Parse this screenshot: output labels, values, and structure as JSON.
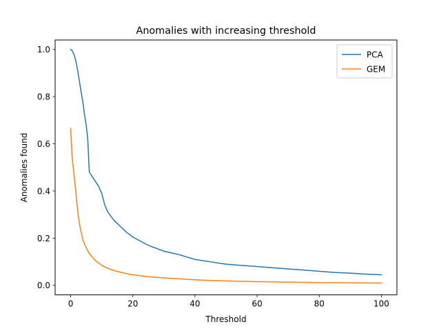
{
  "chart_data": {
    "type": "line",
    "title": "Anomalies with increasing threshold",
    "xlabel": "Threshold",
    "ylabel": "Anomalies found",
    "xlim": [
      -5,
      105
    ],
    "ylim": [
      -0.04,
      1.04
    ],
    "xticks": [
      0,
      20,
      40,
      60,
      80,
      100
    ],
    "xtick_labels": [
      "0",
      "20",
      "40",
      "60",
      "80",
      "100"
    ],
    "yticks": [
      0.0,
      0.2,
      0.4,
      0.6,
      0.8,
      1.0
    ],
    "ytick_labels": [
      "0.0",
      "0.2",
      "0.4",
      "0.6",
      "0.8",
      "1.0"
    ],
    "grid": false,
    "legend_position": "top-right",
    "series": [
      {
        "name": "PCA",
        "color": "#1f77b4",
        "x": [
          0,
          0.5,
          1,
          1.5,
          2,
          2.5,
          3,
          3.5,
          4,
          4.5,
          5,
          5.5,
          6,
          7,
          8,
          9,
          10,
          11,
          12,
          14,
          16,
          18,
          20,
          25,
          30,
          35,
          40,
          45,
          50,
          55,
          60,
          65,
          70,
          75,
          80,
          85,
          90,
          95,
          100
        ],
        "y": [
          1.0,
          0.995,
          0.98,
          0.96,
          0.93,
          0.89,
          0.85,
          0.81,
          0.77,
          0.72,
          0.68,
          0.62,
          0.48,
          0.46,
          0.44,
          0.42,
          0.39,
          0.34,
          0.31,
          0.275,
          0.25,
          0.225,
          0.205,
          0.17,
          0.145,
          0.13,
          0.11,
          0.1,
          0.09,
          0.085,
          0.08,
          0.075,
          0.07,
          0.065,
          0.06,
          0.055,
          0.052,
          0.048,
          0.045
        ]
      },
      {
        "name": "GEM",
        "color": "#ff7f0e",
        "x": [
          0,
          0.5,
          1,
          1.5,
          2,
          2.5,
          3,
          3.5,
          4,
          5,
          6,
          7,
          8,
          9,
          10,
          12,
          14,
          16,
          18,
          20,
          25,
          30,
          35,
          40,
          45,
          50,
          60,
          70,
          80,
          90,
          100
        ],
        "y": [
          0.665,
          0.54,
          0.48,
          0.42,
          0.35,
          0.29,
          0.25,
          0.22,
          0.19,
          0.16,
          0.135,
          0.12,
          0.105,
          0.095,
          0.085,
          0.072,
          0.063,
          0.056,
          0.05,
          0.045,
          0.037,
          0.032,
          0.028,
          0.024,
          0.021,
          0.019,
          0.016,
          0.014,
          0.012,
          0.011,
          0.01
        ]
      }
    ]
  }
}
